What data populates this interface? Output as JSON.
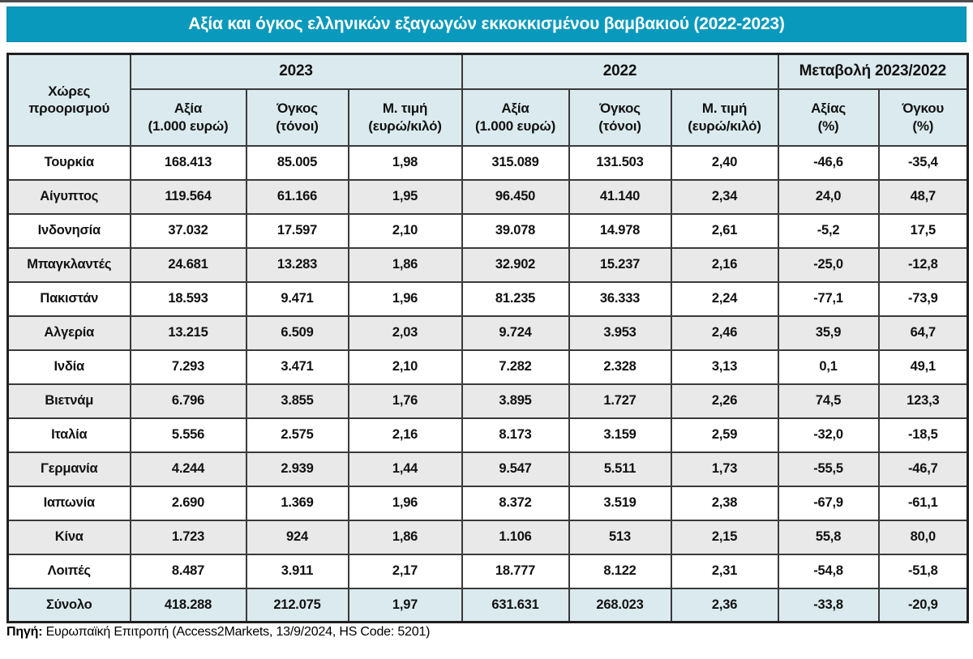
{
  "title": "Αξία και όγκος ελληνικών εξαγωγών εκκοκκισμένου βαμβακιού (2022-2023)",
  "colors": {
    "title_bg": "#0999BC",
    "title_text": "#FFFFFF",
    "header_bg": "#DBEAEE",
    "total_row_bg": "#DBEAEE",
    "alt_row_bg": "#E9E9E9",
    "row_bg": "#FFFFFF",
    "border": "#3A3A3A"
  },
  "chart_data": {
    "type": "table",
    "title": "Αξία και όγκος ελληνικών εξαγωγών εκκοκκισμένου βαμβακιού (2022-2023)",
    "header": {
      "countries": "Χώρες\nπροορισμού",
      "group_2023": "2023",
      "group_2022": "2022",
      "group_change": "Μεταβολή 2023/2022",
      "sub_value": "Αξία\n(1.000 ευρώ)",
      "sub_volume": "Όγκος\n(τόνοι)",
      "sub_price": "Μ. τιμή\n(ευρώ/κιλό)",
      "sub_change_value": "Αξίας\n(%)",
      "sub_change_volume": "Όγκου\n(%)"
    },
    "rows": [
      [
        "Τουρκία",
        "168.413",
        "85.005",
        "1,98",
        "315.089",
        "131.503",
        "2,40",
        "-46,6",
        "-35,4"
      ],
      [
        "Αίγυπτος",
        "119.564",
        "61.166",
        "1,95",
        "96.450",
        "41.140",
        "2,34",
        "24,0",
        "48,7"
      ],
      [
        "Ινδονησία",
        "37.032",
        "17.597",
        "2,10",
        "39.078",
        "14.978",
        "2,61",
        "-5,2",
        "17,5"
      ],
      [
        "Μπαγκλαντές",
        "24.681",
        "13.283",
        "1,86",
        "32.902",
        "15.237",
        "2,16",
        "-25,0",
        "-12,8"
      ],
      [
        "Πακιστάν",
        "18.593",
        "9.471",
        "1,96",
        "81.235",
        "36.333",
        "2,24",
        "-77,1",
        "-73,9"
      ],
      [
        "Αλγερία",
        "13.215",
        "6.509",
        "2,03",
        "9.724",
        "3.953",
        "2,46",
        "35,9",
        "64,7"
      ],
      [
        "Ινδία",
        "7.293",
        "3.471",
        "2,10",
        "7.282",
        "2.328",
        "3,13",
        "0,1",
        "49,1"
      ],
      [
        "Βιετνάμ",
        "6.796",
        "3.855",
        "1,76",
        "3.895",
        "1.727",
        "2,26",
        "74,5",
        "123,3"
      ],
      [
        "Ιταλία",
        "5.556",
        "2.575",
        "2,16",
        "8.173",
        "3.159",
        "2,59",
        "-32,0",
        "-18,5"
      ],
      [
        "Γερμανία",
        "4.244",
        "2.939",
        "1,44",
        "9.547",
        "5.511",
        "1,73",
        "-55,5",
        "-46,7"
      ],
      [
        "Ιαπωνία",
        "2.690",
        "1.369",
        "1,96",
        "8.372",
        "3.519",
        "2,38",
        "-67,9",
        "-61,1"
      ],
      [
        "Κίνα",
        "1.723",
        "924",
        "1,86",
        "1.106",
        "513",
        "2,15",
        "55,8",
        "80,0"
      ],
      [
        "Λοιπές",
        "8.487",
        "3.911",
        "2,17",
        "18.777",
        "8.122",
        "2,31",
        "-54,8",
        "-51,8"
      ]
    ],
    "total_row": [
      "Σύνολο",
      "418.288",
      "212.075",
      "1,97",
      "631.631",
      "268.023",
      "2,36",
      "-33,8",
      "-20,9"
    ]
  },
  "footer": {
    "source_label": "Πηγή:",
    "source_text": " Ευρωπαϊκή Επιτροπή (Access2Markets, 13/9/2024, HS Code: 5201)"
  }
}
